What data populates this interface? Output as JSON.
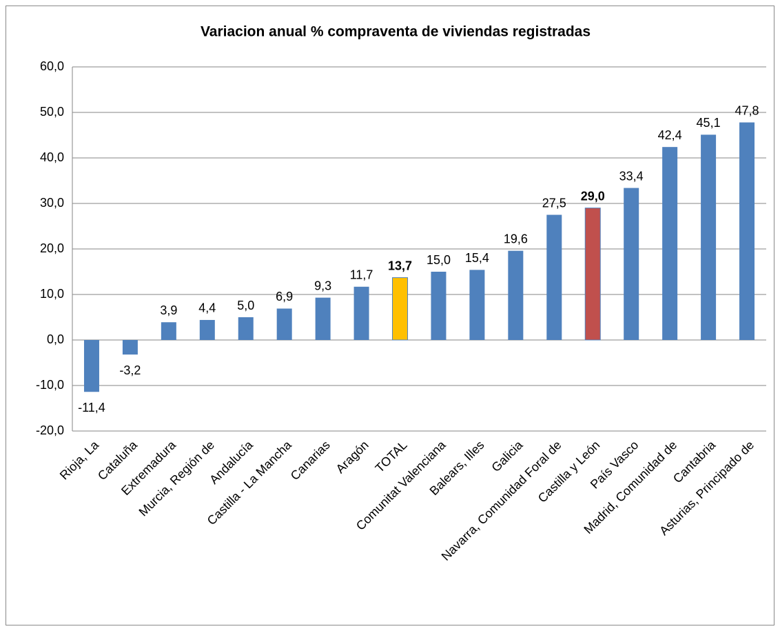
{
  "chart_data": {
    "type": "bar",
    "title": "Variacion anual % compraventa de viviendas registradas",
    "categories": [
      "Rioja, La",
      "Cataluña",
      "Extremadura",
      "Murcia, Región de",
      "Andalucía",
      "Castilla - La Mancha",
      "Canarias",
      "Aragón",
      "TOTAL",
      "Comunitat Valenciana",
      "Balears, Illes",
      "Galicia",
      "Navarra, Comunidad Foral de",
      "Castilla y León",
      "País Vasco",
      "Madrid, Comunidad de",
      "Cantabria",
      "Asturias, Principado de"
    ],
    "values": [
      -11.4,
      -3.2,
      3.9,
      4.4,
      5.0,
      6.9,
      9.3,
      11.7,
      13.7,
      15.0,
      15.4,
      19.6,
      27.5,
      29.0,
      33.4,
      42.4,
      45.1,
      47.8
    ],
    "value_labels": [
      "-11,4",
      "-3,2",
      "3,9",
      "4,4",
      "5,0",
      "6,9",
      "9,3",
      "11,7",
      "13,7",
      "15,0",
      "15,4",
      "19,6",
      "27,5",
      "29,0",
      "33,4",
      "42,4",
      "45,1",
      "47,8"
    ],
    "value_label_bold": [
      false,
      false,
      false,
      false,
      false,
      false,
      false,
      false,
      true,
      false,
      false,
      false,
      false,
      true,
      false,
      false,
      false,
      false
    ],
    "colors": [
      "#4f81bd",
      "#4f81bd",
      "#4f81bd",
      "#4f81bd",
      "#4f81bd",
      "#4f81bd",
      "#4f81bd",
      "#4f81bd",
      "#ffc000",
      "#4f81bd",
      "#4f81bd",
      "#4f81bd",
      "#4f81bd",
      "#c0504d",
      "#4f81bd",
      "#4f81bd",
      "#4f81bd",
      "#4f81bd"
    ],
    "ylim": [
      -20,
      60
    ],
    "yticks": [
      {
        "value": -20,
        "label": "-20,0"
      },
      {
        "value": -10,
        "label": "-10,0"
      },
      {
        "value": 0,
        "label": "0,0"
      },
      {
        "value": 10,
        "label": "10,0"
      },
      {
        "value": 20,
        "label": "20,0"
      },
      {
        "value": 30,
        "label": "30,0"
      },
      {
        "value": 40,
        "label": "40,0"
      },
      {
        "value": 50,
        "label": "50,0"
      },
      {
        "value": 60,
        "label": "60,0"
      }
    ],
    "grid": true
  }
}
